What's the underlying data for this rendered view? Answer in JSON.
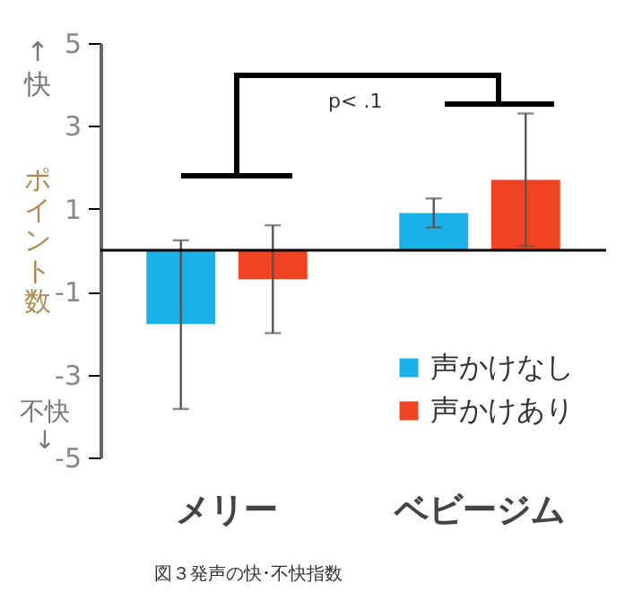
{
  "chart_data": {
    "type": "bar",
    "ylabel": "ポイント数",
    "categories": [
      "メリー",
      "ベビージム"
    ],
    "series": [
      {
        "name": "声かけなし",
        "color": "#1ab0e8",
        "values": [
          -1.78,
          0.9
        ],
        "errors": [
          [
            -3.83,
            0.24
          ],
          [
            0.55,
            1.25
          ]
        ]
      },
      {
        "name": "声かけあり",
        "color": "#f04323",
        "values": [
          -0.7,
          1.7
        ],
        "errors": [
          [
            -2.0,
            0.6
          ],
          [
            0.1,
            3.3
          ]
        ]
      }
    ],
    "ylim": [
      -5,
      5
    ],
    "yticks": [
      -5,
      -3,
      -1,
      1,
      3,
      5
    ],
    "ref_lines": [
      {
        "axis": "y",
        "value": 0,
        "color": "#000000"
      }
    ],
    "legend": "bottom right",
    "grid": false,
    "annotations": [
      "↑快",
      "不快↓",
      "p< .1",
      "図３発声の快･不快指数"
    ]
  }
}
